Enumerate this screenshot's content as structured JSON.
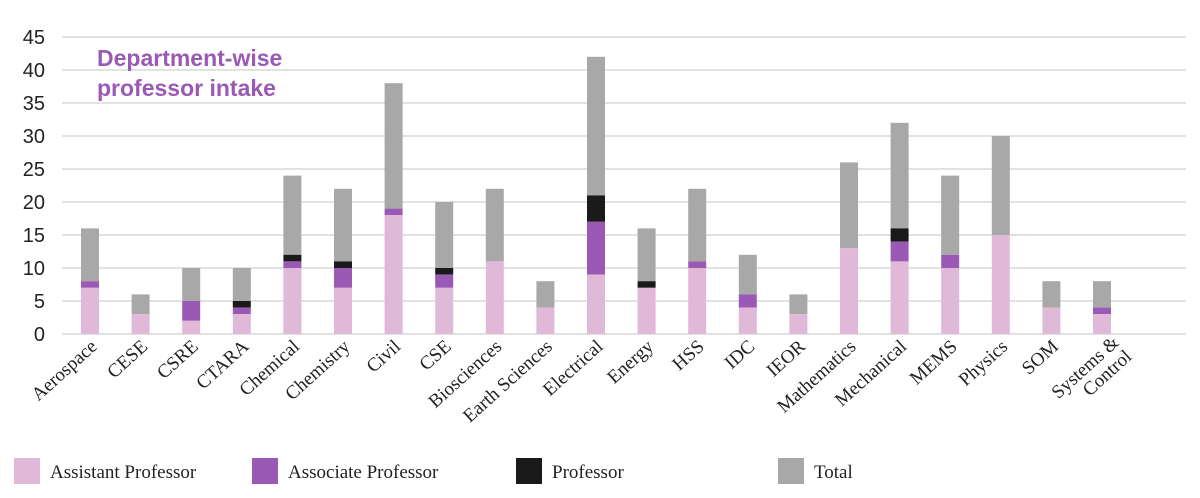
{
  "chart_data": {
    "type": "bar",
    "title_lines": [
      "Department-wise",
      "professor intake"
    ],
    "categories": [
      "Aerospace",
      "CESE",
      "CSRE",
      "CTARA",
      "Chemical",
      "Chemistry",
      "Civil",
      "CSE",
      "Biosciences",
      "Earth Sciences",
      "Electrical",
      "Energy",
      "HSS",
      "IDC",
      "IEOR",
      "Mathematics",
      "Mechanical",
      "MEMS",
      "Physics",
      "SOM",
      "Systems &\nControl"
    ],
    "series": [
      {
        "name": "Assistant Professor",
        "color": "#e0b8d8",
        "values": [
          7,
          3,
          2,
          3,
          10,
          7,
          18,
          7,
          11,
          4,
          9,
          7,
          10,
          4,
          3,
          13,
          11,
          10,
          15,
          4,
          3
        ]
      },
      {
        "name": "Associate Professor",
        "color": "#9b59b6",
        "values": [
          1,
          0,
          3,
          1,
          1,
          3,
          1,
          2,
          0,
          0,
          8,
          0,
          1,
          2,
          0,
          0,
          3,
          2,
          0,
          0,
          1
        ]
      },
      {
        "name": "Professor",
        "color": "#1a1a1a",
        "values": [
          0,
          0,
          0,
          1,
          1,
          1,
          0,
          1,
          0,
          0,
          4,
          1,
          0,
          0,
          0,
          0,
          2,
          0,
          0,
          0,
          0
        ]
      },
      {
        "name": "Total",
        "color": "#a8a8a8",
        "values": [
          16,
          6,
          10,
          10,
          24,
          22,
          38,
          20,
          22,
          8,
          42,
          16,
          22,
          12,
          6,
          26,
          32,
          24,
          30,
          8,
          8
        ]
      }
    ],
    "ylim": [
      0,
      45
    ],
    "yticks": [
      0,
      5,
      10,
      15,
      20,
      25,
      30,
      35,
      40,
      45
    ],
    "grid": true,
    "legend_placement": "bottom"
  }
}
